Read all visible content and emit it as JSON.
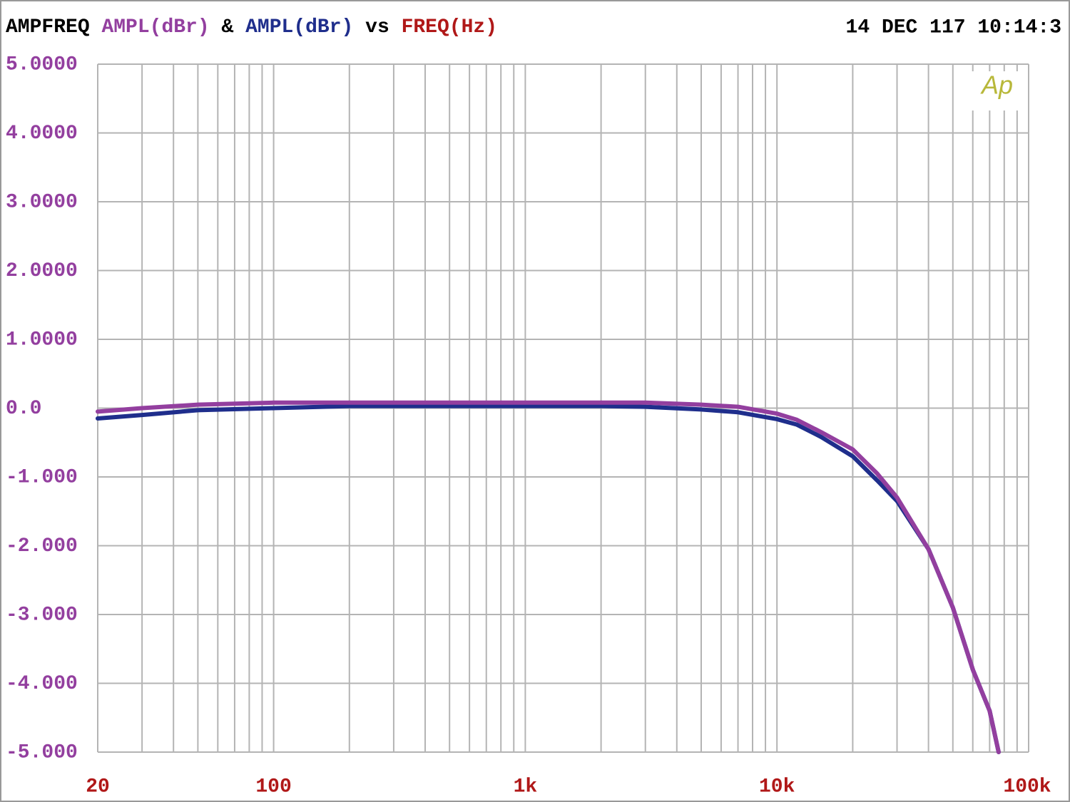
{
  "chart_data": {
    "type": "line",
    "title": "AMPFREQ",
    "joiner": "&",
    "vs": "vs",
    "xlabel": "FREQ(Hz)",
    "timestamp": "14 DEC 117 10:14:3",
    "logo": "Ap",
    "xscale": "log",
    "grid": true,
    "x": [
      20,
      30,
      50,
      100,
      200,
      500,
      1000,
      2000,
      3000,
      5000,
      7000,
      10000,
      12000,
      15000,
      20000,
      25000,
      30000,
      40000,
      50000,
      60000,
      70000,
      76000
    ],
    "series": [
      {
        "name": "AMPL(dBr)",
        "color": "#933f9f",
        "values": [
          -0.05,
          0.0,
          0.05,
          0.08,
          0.08,
          0.08,
          0.08,
          0.08,
          0.08,
          0.05,
          0.02,
          -0.08,
          -0.17,
          -0.35,
          -0.6,
          -0.95,
          -1.3,
          -2.05,
          -2.9,
          -3.8,
          -4.4,
          -5.0
        ]
      },
      {
        "name": "AMPL(dBr)",
        "color": "#1f2e8c",
        "values": [
          -0.15,
          -0.1,
          -0.03,
          0.0,
          0.03,
          0.03,
          0.03,
          0.03,
          0.02,
          -0.02,
          -0.06,
          -0.16,
          -0.24,
          -0.42,
          -0.7,
          -1.05,
          -1.35,
          -2.05,
          -2.9,
          -3.8,
          -4.4,
          -5.0
        ]
      }
    ],
    "xlim": [
      20,
      100000
    ],
    "xticks": [
      20,
      100,
      {
        "value": 1000,
        "label": "1k"
      },
      {
        "value": 10000,
        "label": "10k"
      },
      {
        "value": 100000,
        "label": "100k"
      }
    ],
    "xminor": [
      30,
      40,
      50,
      60,
      70,
      80,
      90,
      200,
      300,
      400,
      500,
      600,
      700,
      800,
      900,
      2000,
      3000,
      4000,
      5000,
      6000,
      7000,
      8000,
      9000,
      20000,
      30000,
      40000,
      50000,
      60000,
      70000,
      80000,
      90000
    ],
    "ylim": [
      -5,
      5
    ],
    "yticks": [
      {
        "value": 5,
        "label": "5.0000"
      },
      {
        "value": 4,
        "label": "4.0000"
      },
      {
        "value": 3,
        "label": "3.0000"
      },
      {
        "value": 2,
        "label": "2.0000"
      },
      {
        "value": 1,
        "label": "1.0000"
      },
      {
        "value": 0,
        "label": "0.0"
      },
      {
        "value": -1,
        "label": "-1.000"
      },
      {
        "value": -2,
        "label": "-2.000"
      },
      {
        "value": -3,
        "label": "-3.000"
      },
      {
        "value": -4,
        "label": "-4.000"
      },
      {
        "value": -5,
        "label": "-5.000"
      }
    ]
  }
}
